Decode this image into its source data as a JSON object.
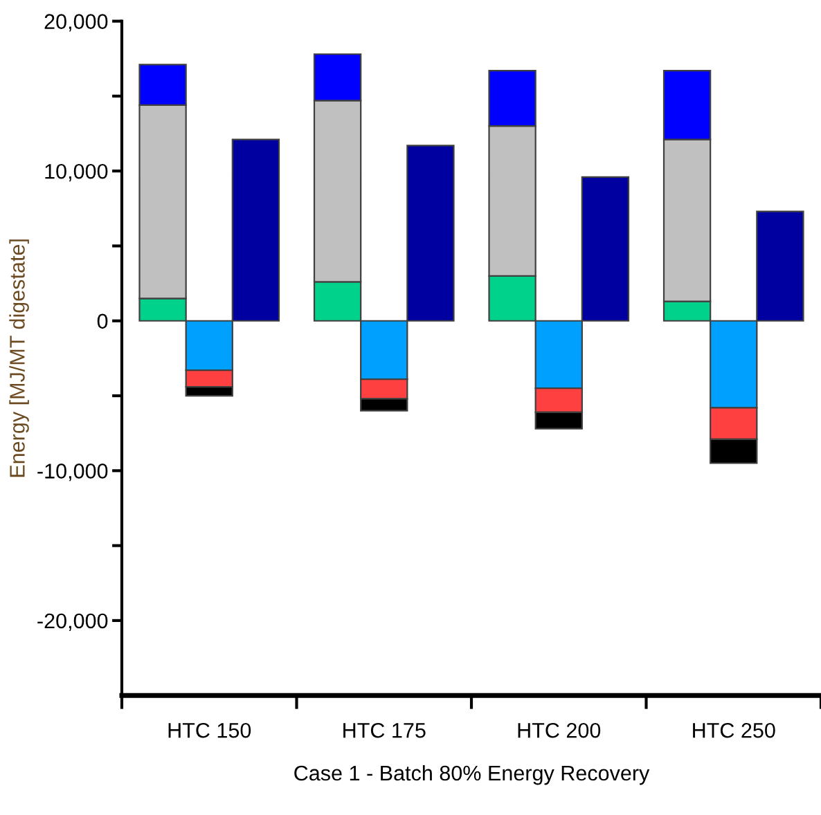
{
  "chart_data": {
    "type": "bar",
    "xlabel": "Case 1 - Batch 80% Energy Recovery",
    "ylabel": "Energy [MJ/MT digestate]",
    "categories": [
      "HTC 150",
      "HTC 175",
      "HTC 200",
      "HTC 250"
    ],
    "series": [
      {
        "color": "#00d28c",
        "values": [
          1500,
          2600,
          3000,
          1300
        ],
        "base": [
          0,
          0,
          0,
          0
        ]
      },
      {
        "color": "#c0c0c0",
        "values": [
          12900,
          12100,
          10000,
          10800
        ],
        "base": [
          1500,
          2600,
          3000,
          1300
        ]
      },
      {
        "color": "#0000ff",
        "values": [
          2700,
          3100,
          3700,
          4600
        ],
        "base": [
          14400,
          14700,
          13000,
          12100
        ]
      },
      {
        "color": "#00a0ff",
        "values": [
          -3300,
          -3900,
          -4500,
          -5800
        ],
        "base": [
          0,
          0,
          0,
          0
        ]
      },
      {
        "color": "#ff4040",
        "values": [
          -1100,
          -1300,
          -1600,
          -2100
        ],
        "base": [
          -3300,
          -3900,
          -4500,
          -5800
        ]
      },
      {
        "color": "#000000",
        "values": [
          -600,
          -800,
          -1100,
          -1600
        ],
        "base": [
          -4400,
          -5200,
          -6100,
          -7900
        ]
      },
      {
        "color": "#0000a0",
        "values": [
          12100,
          11700,
          9600,
          7300
        ],
        "base": [
          0,
          0,
          0,
          0
        ]
      }
    ],
    "ylim": [
      -25000,
      20000
    ],
    "yticks": [
      {
        "value": -20000,
        "label": "-20,000"
      },
      {
        "value": -15000,
        "label": null
      },
      {
        "value": -10000,
        "label": "-10,000"
      },
      {
        "value": -5000,
        "label": null
      },
      0,
      {
        "value": 5000,
        "label": null
      },
      {
        "value": 10000,
        "label": "10,000"
      },
      {
        "value": 15000,
        "label": null
      },
      {
        "value": 20000,
        "label": "20,000"
      }
    ],
    "grid": false
  }
}
